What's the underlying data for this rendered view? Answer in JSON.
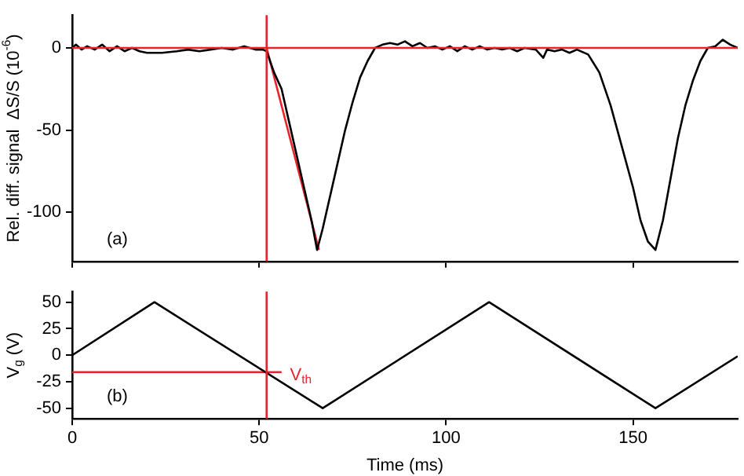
{
  "chart_data": [
    {
      "type": "line",
      "ylabel": "Rel. diff. signal  ΔS/S (10$^{-6}$)",
      "xlim": [
        0,
        178
      ],
      "xticks": [
        0,
        50,
        100,
        150
      ],
      "ylim": [
        -130,
        20
      ],
      "yticks": [
        -100,
        -50,
        0
      ],
      "tick_labels": "y",
      "grid": false,
      "legend": false,
      "marker": "none",
      "line_style": "solid",
      "annotations": [
        "(a)"
      ],
      "ref_lines": [
        {
          "axis": "x",
          "value": 52,
          "color": "#e8232a"
        },
        {
          "axis": "y",
          "value": 0,
          "color": "#e8232a"
        }
      ],
      "series": [
        {
          "color": "#000000",
          "x": [
            0,
            1,
            2.5,
            4,
            6,
            8,
            10,
            12,
            14,
            16,
            18,
            20,
            24,
            28,
            31,
            34,
            37,
            40,
            43,
            46,
            49,
            51,
            52,
            54,
            56,
            58,
            60,
            62,
            64,
            65.5,
            67,
            69,
            71,
            73,
            75,
            77,
            79,
            81,
            83,
            85,
            87,
            89,
            91,
            93,
            95,
            97,
            99,
            101,
            103,
            105,
            107,
            109,
            111,
            113,
            115,
            117,
            119,
            121,
            124,
            126,
            127,
            129,
            131,
            133,
            135,
            138,
            141,
            144,
            147,
            150,
            152,
            154,
            156,
            158,
            160,
            162,
            164,
            166,
            168,
            170,
            172,
            174,
            176,
            178
          ],
          "values": [
            0,
            2,
            -1,
            1,
            -1,
            2,
            -2,
            1,
            -2,
            0,
            -2,
            -3,
            -3,
            -2,
            -1,
            -2,
            -1,
            0,
            -1,
            1,
            -1,
            -1,
            -2,
            -15,
            -25,
            -45,
            -65,
            -85,
            -105,
            -123,
            -110,
            -90,
            -70,
            -50,
            -33,
            -18,
            -8,
            0,
            2,
            3,
            2,
            4,
            1,
            3,
            0,
            1,
            -1,
            1,
            -2,
            1,
            -1,
            1,
            -1,
            0,
            -1,
            0,
            -2,
            0,
            -1,
            -6,
            -1,
            -2,
            -1,
            -3,
            -1,
            -4,
            -15,
            -35,
            -60,
            -85,
            -105,
            -118,
            -123,
            -105,
            -80,
            -55,
            -35,
            -20,
            -8,
            0,
            1,
            5,
            2,
            0
          ]
        },
        {
          "color": "#e8232a",
          "x": [
            52,
            66
          ],
          "values": [
            0,
            -123
          ]
        }
      ]
    },
    {
      "type": "line",
      "ylabel": "V$_{g}$ (V)",
      "xlabel": "Time (ms)",
      "xlim": [
        0,
        178
      ],
      "xticks": [
        0,
        50,
        100,
        150
      ],
      "ylim": [
        -60,
        60
      ],
      "yticks": [
        -50,
        -25,
        0,
        25,
        50
      ],
      "grid": false,
      "legend": false,
      "marker": "none",
      "line_style": "solid",
      "annotations": [
        "(b)",
        {
          "text": "V$_{th}$",
          "x": 57,
          "y": -16
        }
      ],
      "ref_lines": [
        {
          "axis": "x",
          "value": 52,
          "color": "#e8232a"
        }
      ],
      "series": [
        {
          "color": "#000000",
          "x": [
            0,
            22,
            67,
            111.5,
            156,
            178
          ],
          "values": [
            0,
            50,
            -50,
            50,
            -50,
            -1
          ]
        },
        {
          "color": "#e8232a",
          "x": [
            0,
            56
          ],
          "values": [
            -16,
            -16
          ]
        }
      ]
    }
  ]
}
